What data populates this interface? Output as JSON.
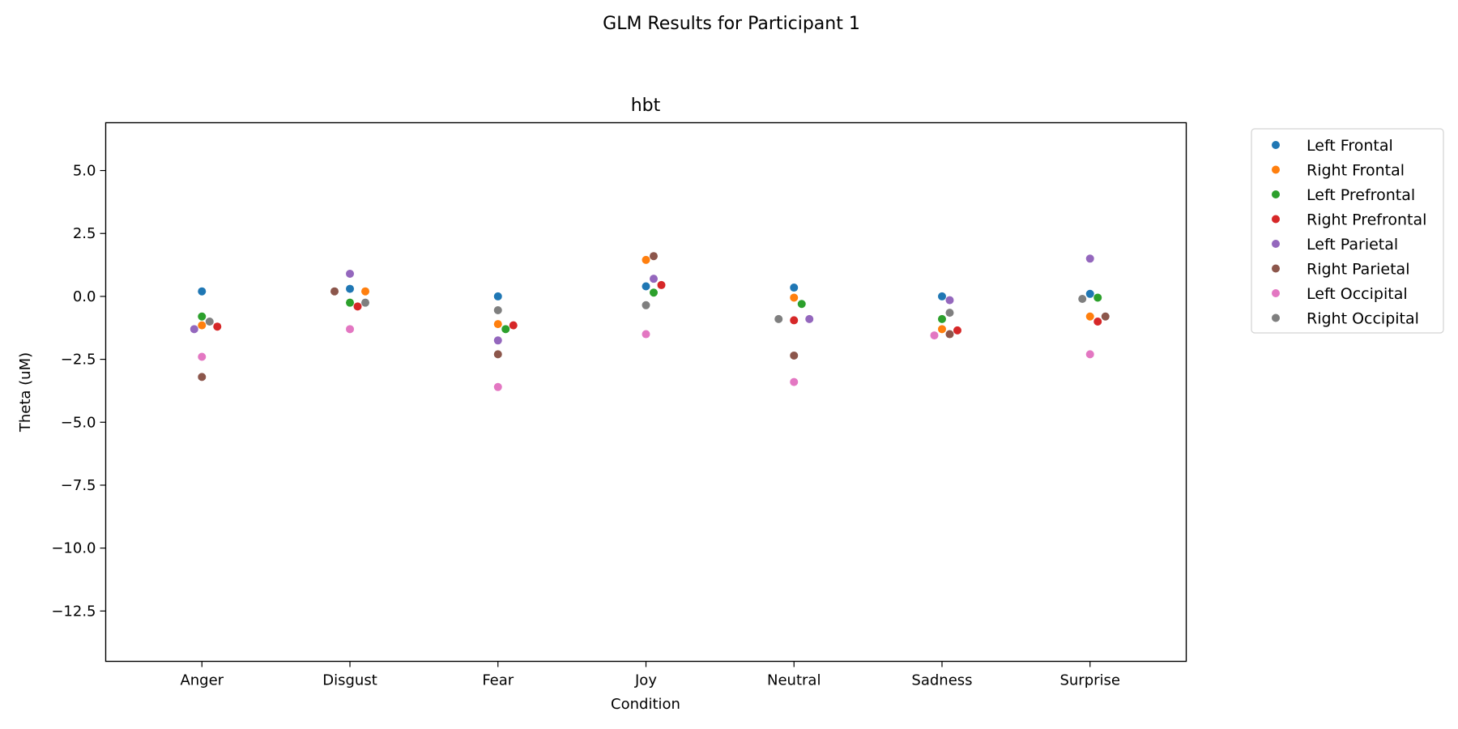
{
  "figure": {
    "suptitle": "GLM Results for Participant 1"
  },
  "chart_data": {
    "type": "scatter",
    "title": "hbt",
    "xlabel": "Condition",
    "ylabel": "Theta (uM)",
    "categories": [
      "Anger",
      "Disgust",
      "Fear",
      "Joy",
      "Neutral",
      "Sadness",
      "Surprise"
    ],
    "ylim": [
      -14.5,
      6.9
    ],
    "yticks": [
      5.0,
      2.5,
      0.0,
      -2.5,
      -5.0,
      -7.5,
      -10.0,
      -12.5
    ],
    "ytick_labels": [
      "5.0",
      "2.5",
      "0.0",
      "−2.5",
      "−5.0",
      "−7.5",
      "−10.0",
      "−12.5"
    ],
    "grid": false,
    "legend_position": "outside right",
    "series": [
      {
        "name": "Left Frontal",
        "color": "#1f77b4",
        "values": [
          0.2,
          0.3,
          0.0,
          0.4,
          0.35,
          0.0,
          0.1
        ]
      },
      {
        "name": "Right Frontal",
        "color": "#ff7f0e",
        "values": [
          -1.15,
          0.2,
          -1.1,
          1.45,
          -0.05,
          -1.3,
          -0.8
        ]
      },
      {
        "name": "Left Prefrontal",
        "color": "#2ca02c",
        "values": [
          -0.8,
          -0.25,
          -1.3,
          0.15,
          -0.3,
          -0.9,
          -0.05
        ]
      },
      {
        "name": "Right Prefrontal",
        "color": "#d62728",
        "values": [
          -1.2,
          -0.4,
          -1.15,
          0.45,
          -0.95,
          -1.35,
          -1.0
        ]
      },
      {
        "name": "Left Parietal",
        "color": "#9467bd",
        "values": [
          -1.3,
          0.9,
          -1.75,
          0.7,
          -0.9,
          -0.15,
          1.5
        ]
      },
      {
        "name": "Right Parietal",
        "color": "#8c564b",
        "values": [
          -3.2,
          0.2,
          -2.3,
          1.6,
          -2.35,
          -1.5,
          -0.8
        ]
      },
      {
        "name": "Left Occipital",
        "color": "#e377c2",
        "values": [
          -2.4,
          -1.3,
          -3.6,
          -1.5,
          -3.4,
          -1.55,
          -2.3
        ]
      },
      {
        "name": "Right Occipital",
        "color": "#7f7f7f",
        "values": [
          -1.0,
          -0.25,
          -0.55,
          -0.35,
          -0.9,
          -0.65,
          -0.1
        ]
      }
    ]
  }
}
